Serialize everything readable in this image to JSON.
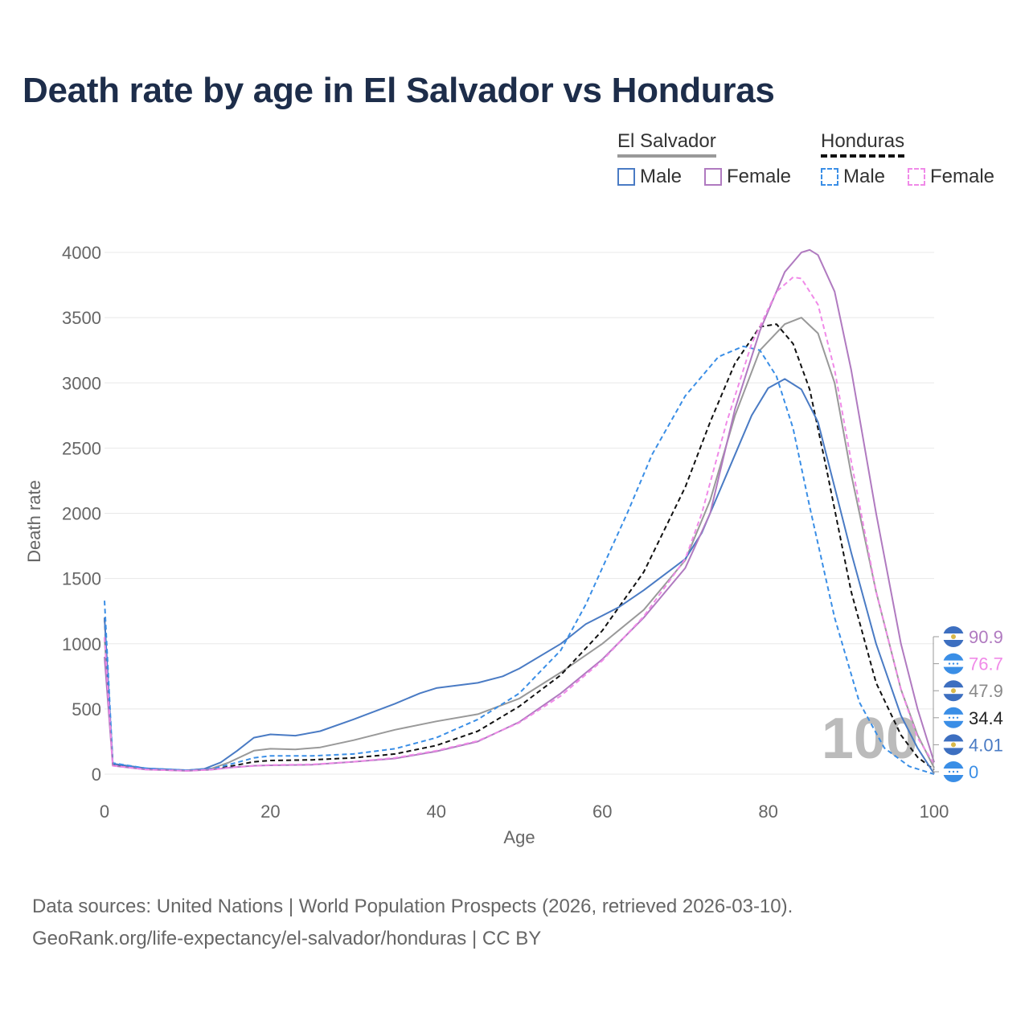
{
  "title": "Death rate by age in El Salvador vs Honduras",
  "legend": {
    "groups": [
      {
        "name": "El Salvador",
        "items": [
          "Male",
          "Female"
        ]
      },
      {
        "name": "Honduras",
        "items": [
          "Male",
          "Female"
        ]
      }
    ]
  },
  "footer": {
    "line1": "Data sources: United Nations | World Population Prospects (2026, retrieved 2026-03-10).",
    "line2": "GeoRank.org/life-expectancy/el-salvador/honduras | CC BY"
  },
  "colors": {
    "es_male": "#4a7bc4",
    "es_female": "#b07ac0",
    "es_total": "#999999",
    "hn_male": "#3a8ee6",
    "hn_female": "#f08ae8",
    "hn_total": "#111111",
    "grid": "#e8e8e8",
    "title": "#1d2d4a",
    "watermark": "#bbbbbb"
  },
  "watermark": "100",
  "chart_data": {
    "type": "line",
    "xlabel": "Age",
    "ylabel": "Death rate",
    "xlim": [
      0,
      100
    ],
    "ylim": [
      0,
      4000
    ],
    "xticks": [
      0,
      20,
      40,
      60,
      80,
      100
    ],
    "yticks": [
      0,
      500,
      1000,
      1500,
      2000,
      2500,
      3000,
      3500,
      4000
    ],
    "series": [
      {
        "key": "es_total",
        "name": "El Salvador",
        "dashed": false,
        "end_label": "47.9",
        "points": [
          [
            0,
            1050
          ],
          [
            1,
            75
          ],
          [
            5,
            40
          ],
          [
            10,
            30
          ],
          [
            13,
            45
          ],
          [
            15,
            90
          ],
          [
            18,
            180
          ],
          [
            20,
            195
          ],
          [
            23,
            190
          ],
          [
            26,
            205
          ],
          [
            30,
            260
          ],
          [
            35,
            340
          ],
          [
            40,
            405
          ],
          [
            45,
            460
          ],
          [
            50,
            580
          ],
          [
            55,
            780
          ],
          [
            60,
            1000
          ],
          [
            65,
            1260
          ],
          [
            70,
            1640
          ],
          [
            73,
            2100
          ],
          [
            76,
            2750
          ],
          [
            79,
            3250
          ],
          [
            82,
            3450
          ],
          [
            84,
            3500
          ],
          [
            86,
            3380
          ],
          [
            88,
            3000
          ],
          [
            90,
            2300
          ],
          [
            93,
            1400
          ],
          [
            96,
            650
          ],
          [
            98,
            300
          ],
          [
            100,
            48
          ]
        ]
      },
      {
        "key": "es_male",
        "name": "El Salvador Male",
        "dashed": false,
        "end_label": "4.01",
        "points": [
          [
            0,
            1200
          ],
          [
            1,
            80
          ],
          [
            5,
            45
          ],
          [
            10,
            30
          ],
          [
            12,
            40
          ],
          [
            14,
            90
          ],
          [
            16,
            180
          ],
          [
            18,
            280
          ],
          [
            20,
            305
          ],
          [
            23,
            295
          ],
          [
            26,
            330
          ],
          [
            30,
            420
          ],
          [
            35,
            540
          ],
          [
            38,
            620
          ],
          [
            40,
            660
          ],
          [
            45,
            700
          ],
          [
            48,
            750
          ],
          [
            50,
            810
          ],
          [
            55,
            1000
          ],
          [
            58,
            1150
          ],
          [
            62,
            1280
          ],
          [
            65,
            1410
          ],
          [
            70,
            1650
          ],
          [
            72,
            1850
          ],
          [
            75,
            2300
          ],
          [
            78,
            2750
          ],
          [
            80,
            2960
          ],
          [
            82,
            3030
          ],
          [
            84,
            2950
          ],
          [
            86,
            2700
          ],
          [
            88,
            2200
          ],
          [
            90,
            1700
          ],
          [
            93,
            1000
          ],
          [
            96,
            450
          ],
          [
            98,
            200
          ],
          [
            100,
            4
          ]
        ]
      },
      {
        "key": "es_female",
        "name": "El Salvador Female",
        "dashed": false,
        "end_label": "90.9",
        "points": [
          [
            0,
            900
          ],
          [
            1,
            65
          ],
          [
            5,
            35
          ],
          [
            10,
            25
          ],
          [
            13,
            35
          ],
          [
            15,
            50
          ],
          [
            18,
            65
          ],
          [
            20,
            68
          ],
          [
            25,
            72
          ],
          [
            30,
            95
          ],
          [
            35,
            120
          ],
          [
            40,
            175
          ],
          [
            45,
            250
          ],
          [
            50,
            400
          ],
          [
            55,
            620
          ],
          [
            60,
            880
          ],
          [
            65,
            1200
          ],
          [
            70,
            1580
          ],
          [
            73,
            2000
          ],
          [
            76,
            2800
          ],
          [
            79,
            3400
          ],
          [
            82,
            3850
          ],
          [
            84,
            4000
          ],
          [
            85,
            4020
          ],
          [
            86,
            3980
          ],
          [
            88,
            3700
          ],
          [
            90,
            3100
          ],
          [
            93,
            2000
          ],
          [
            96,
            1000
          ],
          [
            98,
            500
          ],
          [
            100,
            91
          ]
        ]
      },
      {
        "key": "hn_total",
        "name": "Honduras",
        "dashed": true,
        "end_label": "34.4",
        "points": [
          [
            0,
            1200
          ],
          [
            1,
            75
          ],
          [
            5,
            40
          ],
          [
            10,
            28
          ],
          [
            13,
            35
          ],
          [
            16,
            70
          ],
          [
            18,
            95
          ],
          [
            20,
            105
          ],
          [
            25,
            110
          ],
          [
            30,
            125
          ],
          [
            35,
            155
          ],
          [
            40,
            220
          ],
          [
            45,
            330
          ],
          [
            50,
            520
          ],
          [
            55,
            760
          ],
          [
            60,
            1100
          ],
          [
            65,
            1550
          ],
          [
            70,
            2200
          ],
          [
            73,
            2700
          ],
          [
            76,
            3150
          ],
          [
            79,
            3430
          ],
          [
            81,
            3450
          ],
          [
            83,
            3300
          ],
          [
            85,
            2950
          ],
          [
            87,
            2350
          ],
          [
            90,
            1400
          ],
          [
            93,
            700
          ],
          [
            96,
            300
          ],
          [
            98,
            130
          ],
          [
            100,
            34
          ]
        ]
      },
      {
        "key": "hn_male",
        "name": "Honduras Male",
        "dashed": true,
        "end_label": "0",
        "points": [
          [
            0,
            1330
          ],
          [
            1,
            85
          ],
          [
            5,
            45
          ],
          [
            10,
            30
          ],
          [
            13,
            40
          ],
          [
            16,
            90
          ],
          [
            18,
            125
          ],
          [
            20,
            140
          ],
          [
            25,
            140
          ],
          [
            30,
            155
          ],
          [
            35,
            195
          ],
          [
            40,
            280
          ],
          [
            45,
            420
          ],
          [
            50,
            620
          ],
          [
            55,
            950
          ],
          [
            58,
            1300
          ],
          [
            60,
            1580
          ],
          [
            63,
            2000
          ],
          [
            66,
            2450
          ],
          [
            70,
            2900
          ],
          [
            74,
            3200
          ],
          [
            77,
            3280
          ],
          [
            79,
            3250
          ],
          [
            81,
            3050
          ],
          [
            83,
            2650
          ],
          [
            85,
            2050
          ],
          [
            88,
            1200
          ],
          [
            91,
            550
          ],
          [
            94,
            200
          ],
          [
            97,
            60
          ],
          [
            100,
            0
          ]
        ]
      },
      {
        "key": "hn_female",
        "name": "Honduras Female",
        "dashed": true,
        "end_label": "76.7",
        "points": [
          [
            0,
            1050
          ],
          [
            1,
            65
          ],
          [
            5,
            35
          ],
          [
            10,
            25
          ],
          [
            13,
            35
          ],
          [
            16,
            55
          ],
          [
            20,
            70
          ],
          [
            25,
            75
          ],
          [
            30,
            95
          ],
          [
            35,
            125
          ],
          [
            40,
            180
          ],
          [
            45,
            255
          ],
          [
            50,
            395
          ],
          [
            55,
            600
          ],
          [
            60,
            870
          ],
          [
            65,
            1210
          ],
          [
            70,
            1650
          ],
          [
            72,
            2000
          ],
          [
            75,
            2700
          ],
          [
            78,
            3300
          ],
          [
            81,
            3700
          ],
          [
            83,
            3810
          ],
          [
            84,
            3800
          ],
          [
            86,
            3600
          ],
          [
            88,
            3100
          ],
          [
            90,
            2400
          ],
          [
            93,
            1400
          ],
          [
            96,
            650
          ],
          [
            98,
            280
          ],
          [
            100,
            77
          ]
        ]
      }
    ]
  }
}
